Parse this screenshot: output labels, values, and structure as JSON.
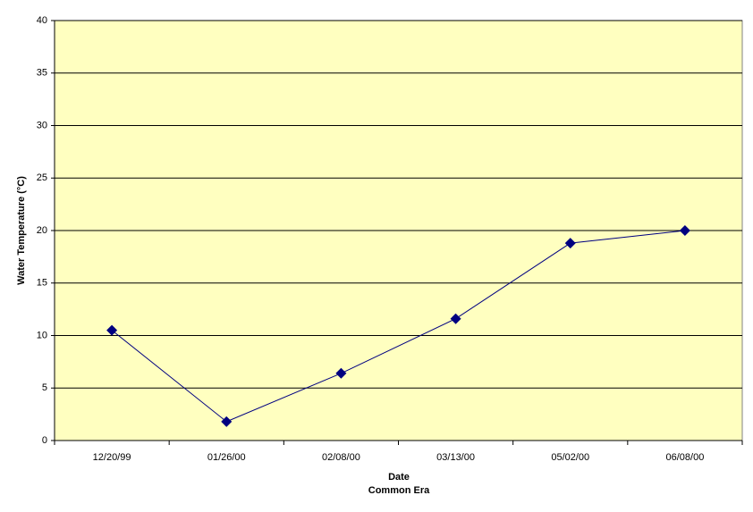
{
  "chart_data": {
    "type": "line",
    "ylabel": "Water Temperature (°C)",
    "xlabel": [
      "Date",
      "Common Era"
    ],
    "categories": [
      "12/20/99",
      "01/26/00",
      "02/08/00",
      "03/13/00",
      "05/02/00",
      "06/08/00"
    ],
    "series": [
      {
        "name": "Water Temperature",
        "color": "#000080",
        "values": [
          10.5,
          1.8,
          6.4,
          11.6,
          18.8,
          20.0
        ]
      }
    ],
    "ylim": [
      0,
      40
    ],
    "yticks": [
      0,
      5,
      10,
      15,
      20,
      25,
      30,
      35,
      40
    ],
    "grid": true,
    "background": "#ffffc0"
  }
}
